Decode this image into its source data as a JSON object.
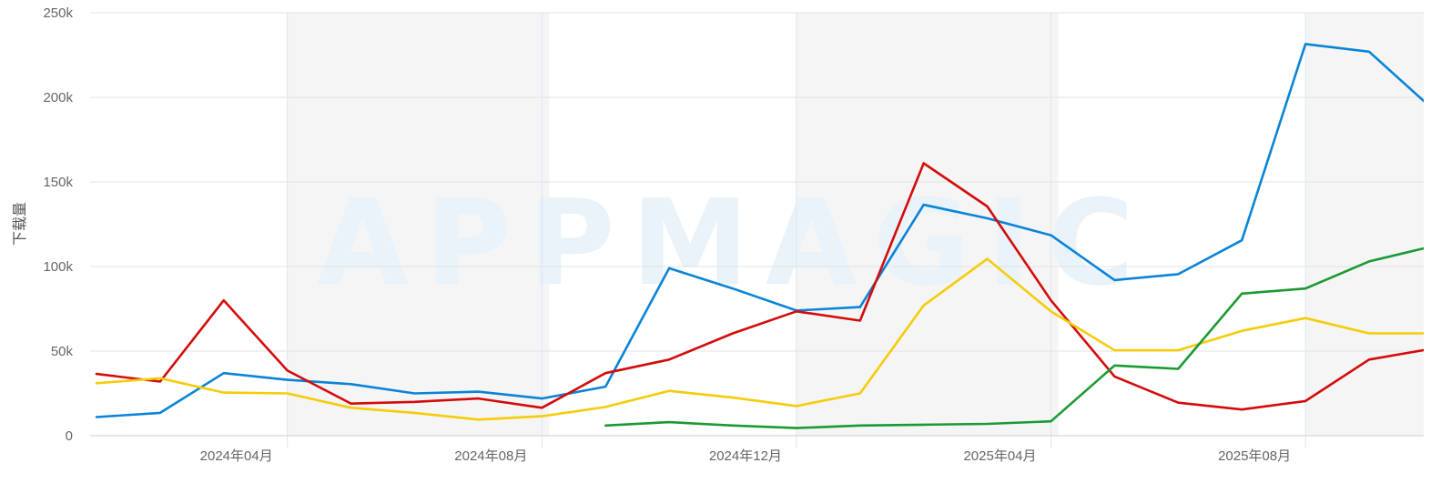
{
  "chart_data": {
    "type": "line",
    "title": "",
    "ylabel": "下载量",
    "xlabel": "",
    "watermark": "APPMAGIC",
    "ylim": [
      0,
      250000
    ],
    "y_ticks": [
      {
        "value": 0,
        "label": "0"
      },
      {
        "value": 50000,
        "label": "50k"
      },
      {
        "value": 100000,
        "label": "100k"
      },
      {
        "value": 150000,
        "label": "150k"
      },
      {
        "value": 200000,
        "label": "200k"
      },
      {
        "value": 250000,
        "label": "250k"
      }
    ],
    "x": [
      "2024-01",
      "2024-02",
      "2024-03",
      "2024-04",
      "2024-05",
      "2024-06",
      "2024-07",
      "2024-08",
      "2024-09",
      "2024-10",
      "2024-11",
      "2024-12",
      "2025-01",
      "2025-02",
      "2025-03",
      "2025-04",
      "2025-05",
      "2025-06",
      "2025-07",
      "2025-08",
      "2025-09",
      "2025-10"
    ],
    "x_ticks": [
      {
        "month": "2024-04",
        "label": "2024年04月"
      },
      {
        "month": "2024-08",
        "label": "2024年08月"
      },
      {
        "month": "2024-12",
        "label": "2024年12月"
      },
      {
        "month": "2025-04",
        "label": "2025年04月"
      },
      {
        "month": "2025-08",
        "label": "2025年08月"
      }
    ],
    "shaded_bands": [
      {
        "from": "2024-04",
        "to": "2024-08"
      },
      {
        "from": "2024-12",
        "to": "2025-04"
      },
      {
        "from": "2025-08",
        "to": "2025-10"
      }
    ],
    "grid": true,
    "legend": "none",
    "series": [
      {
        "color": "#0a84d8",
        "values": [
          11000,
          13500,
          37000,
          33000,
          30500,
          25000,
          26000,
          22000,
          29000,
          99000,
          87000,
          74000,
          76000,
          136500,
          128500,
          118500,
          92000,
          95500,
          115500,
          231500,
          227000,
          193000
        ]
      },
      {
        "color": "#d40b0b",
        "values": [
          36500,
          32000,
          80000,
          38500,
          19000,
          20000,
          22000,
          16500,
          37000,
          45000,
          60500,
          73500,
          68000,
          161000,
          135500,
          80000,
          35000,
          19500,
          15500,
          20500,
          45000,
          51500
        ]
      },
      {
        "color": "#f5cc0a",
        "values": [
          31000,
          34000,
          25500,
          25000,
          16500,
          13500,
          9500,
          11500,
          17000,
          26500,
          22500,
          17500,
          25000,
          77000,
          104500,
          73500,
          50500,
          50500,
          62000,
          69500,
          60500,
          60500
        ]
      },
      {
        "color": "#1a9a32",
        "values": [
          null,
          null,
          null,
          null,
          null,
          null,
          null,
          null,
          6000,
          8000,
          6000,
          4500,
          6000,
          6500,
          7000,
          8500,
          41500,
          39500,
          84000,
          87000,
          103000,
          112000
        ]
      }
    ]
  }
}
